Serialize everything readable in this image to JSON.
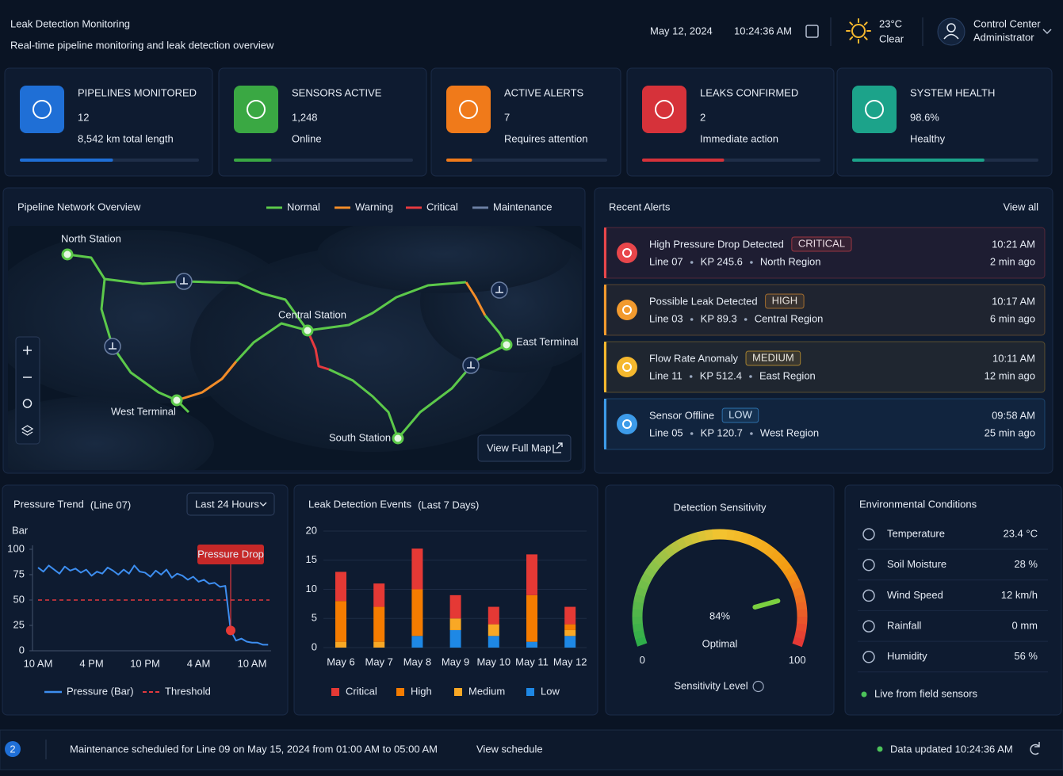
{
  "header": {
    "title": "Leak Detection Monitoring",
    "subtitle": "Real-time pipeline monitoring and leak detection overview",
    "date": "May 12, 2024",
    "time": "10:24:36 AM",
    "temperature": "23°C",
    "weather": "Clear",
    "user": "Control Center",
    "role": "Administrator"
  },
  "kpis": [
    {
      "label": "PIPELINES MONITORED",
      "value": "12",
      "sub": "8,542 km total length",
      "color": "#1f6fd6",
      "progress": 52
    },
    {
      "label": "SENSORS ACTIVE",
      "value": "1,248",
      "sub": "Online",
      "color": "#3aa843",
      "progress": 21
    },
    {
      "label": "ACTIVE ALERTS",
      "value": "7",
      "sub": "Requires attention",
      "color": "#f07a1a",
      "progress": 16
    },
    {
      "label": "LEAKS CONFIRMED",
      "value": "2",
      "sub": "Immediate action",
      "color": "#d6323a",
      "progress": 46
    },
    {
      "label": "SYSTEM HEALTH",
      "value": "98.6%",
      "sub": "Healthy",
      "color": "#1ca38a",
      "progress": 71
    }
  ],
  "map": {
    "title": "Pipeline Network Overview",
    "legend": [
      {
        "name": "Normal",
        "color": "#5cc94a"
      },
      {
        "name": "Warning",
        "color": "#f28c28"
      },
      {
        "name": "Critical",
        "color": "#e53a3f"
      },
      {
        "name": "Maintenance",
        "color": "#6b7fa3"
      }
    ],
    "stations": [
      "North Station",
      "Central Station",
      "East Terminal",
      "West Terminal",
      "South Station"
    ],
    "button": "View Full Map"
  },
  "alerts": {
    "title": "Recent Alerts",
    "view_all": "View all",
    "items": [
      {
        "title": "High Pressure Drop Detected",
        "severity": "CRITICAL",
        "color": "#e8464b",
        "line": "Line 07",
        "kp": "KP 245.6",
        "region": "North Region",
        "time": "10:21 AM",
        "ago": "2 min ago"
      },
      {
        "title": "Possible Leak Detected",
        "severity": "HIGH",
        "color": "#f29a2e",
        "line": "Line 03",
        "kp": "KP 89.3",
        "region": "Central Region",
        "time": "10:17 AM",
        "ago": "6 min ago"
      },
      {
        "title": "Flow Rate Anomaly",
        "severity": "MEDIUM",
        "color": "#f5b82e",
        "line": "Line 11",
        "kp": "KP 512.4",
        "region": "East Region",
        "time": "10:11 AM",
        "ago": "12 min ago"
      },
      {
        "title": "Sensor Offline",
        "severity": "LOW",
        "color": "#3d9be9",
        "line": "Line 05",
        "kp": "KP 120.7",
        "region": "West Region",
        "time": "09:58 AM",
        "ago": "25 min ago"
      }
    ]
  },
  "chart_data": [
    {
      "type": "line",
      "title": "Pressure Trend",
      "subtitle": "(Line 07)",
      "range_selector": "Last 24 Hours",
      "y_label": "Bar",
      "categories": [
        "10 AM",
        null,
        null,
        null,
        null,
        null,
        null,
        null,
        null,
        null,
        "4 PM",
        null,
        null,
        null,
        null,
        null,
        null,
        null,
        null,
        null,
        "10 PM",
        null,
        null,
        null,
        null,
        null,
        null,
        null,
        null,
        null,
        "4 AM",
        null,
        null,
        null,
        null,
        null,
        null,
        null,
        null,
        null,
        "10 AM",
        null,
        null,
        null
      ],
      "series": [
        {
          "name": "Pressure (Bar)",
          "color": "#3d8ef0",
          "values": [
            82,
            78,
            84,
            80,
            76,
            83,
            79,
            81,
            77,
            80,
            74,
            78,
            76,
            82,
            79,
            75,
            80,
            76,
            84,
            78,
            77,
            73,
            79,
            75,
            80,
            72,
            76,
            74,
            70,
            73,
            68,
            70,
            66,
            67,
            63,
            64,
            20,
            10,
            12,
            9,
            8,
            8,
            6,
            6
          ]
        }
      ],
      "threshold": {
        "name": "Threshold",
        "value": 50,
        "color": "#e0393e"
      },
      "annotation": "Pressure Drop",
      "ylim": [
        0,
        100
      ],
      "yticks": [
        0,
        25,
        50,
        75,
        100
      ]
    },
    {
      "type": "bar",
      "stacked": true,
      "title": "Leak Detection Events",
      "subtitle": "(Last 7 Days)",
      "categories": [
        "May 6",
        "May 7",
        "May 8",
        "May 9",
        "May 10",
        "May 11",
        "May 12"
      ],
      "series": [
        {
          "name": "Critical",
          "color": "#e53935",
          "values": [
            5,
            4,
            7,
            4,
            3,
            7,
            3
          ]
        },
        {
          "name": "High",
          "color": "#f57c00",
          "values": [
            7,
            6,
            8,
            0,
            0,
            8,
            1
          ]
        },
        {
          "name": "Medium",
          "color": "#f9a825",
          "values": [
            1,
            1,
            0,
            2,
            2,
            0,
            1
          ]
        },
        {
          "name": "Low",
          "color": "#1e88e5",
          "values": [
            0,
            0,
            2,
            3,
            2,
            1,
            2
          ]
        }
      ],
      "ylim": [
        0,
        20
      ],
      "yticks": [
        0,
        5,
        10,
        15,
        20
      ]
    },
    {
      "type": "gauge",
      "title": "Detection Sensitivity",
      "value": 84,
      "value_label": "84%",
      "status": "Optimal",
      "label": "Sensitivity Level",
      "ylim": [
        0,
        100
      ],
      "yticks": [
        0,
        100
      ]
    }
  ],
  "environment": {
    "title": "Environmental Conditions",
    "rows": [
      {
        "label": "Temperature",
        "value": "23.4 °C"
      },
      {
        "label": "Soil Moisture",
        "value": "28 %"
      },
      {
        "label": "Wind Speed",
        "value": "12 km/h"
      },
      {
        "label": "Rainfall",
        "value": "0 mm"
      },
      {
        "label": "Humidity",
        "value": "56 %"
      }
    ],
    "note": "Live from field sensors"
  },
  "footer": {
    "badge": "2",
    "message": "Maintenance scheduled for Line 09 on May 15, 2024 from 01:00 AM to 05:00 AM",
    "link": "View schedule",
    "updated": "Data updated 10:24:36 AM"
  }
}
